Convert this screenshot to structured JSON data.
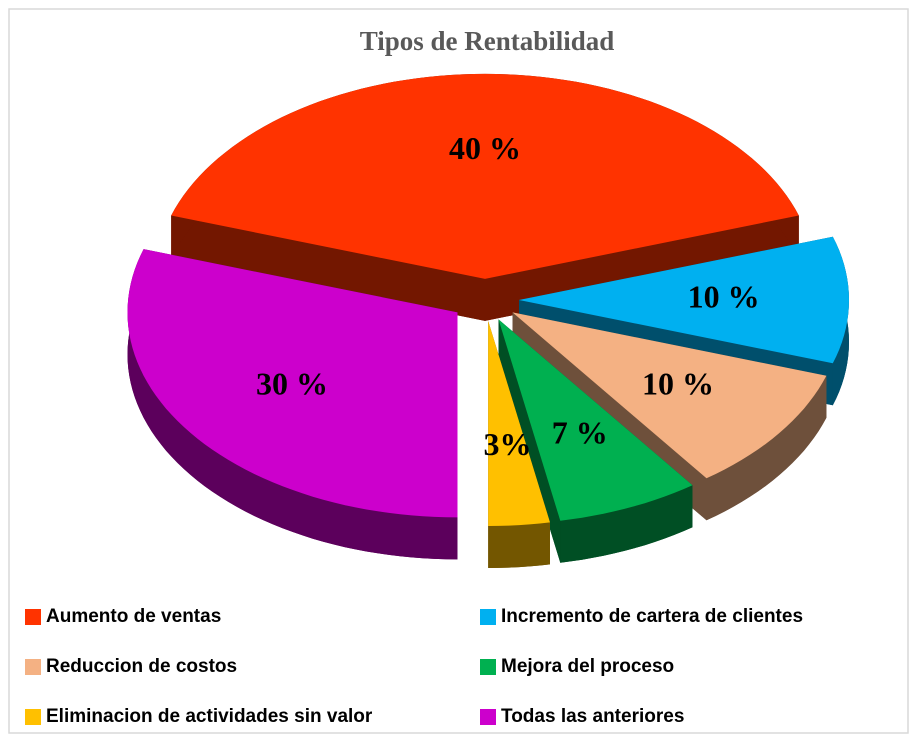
{
  "chart_data": {
    "type": "pie3d",
    "title": "Tipos de Rentabilidad",
    "categories": [
      "Aumento de ventas",
      "Incremento de cartera de clientes",
      "Reduccion de costos",
      "Mejora del proceso",
      "Eliminacion de actividades sin valor",
      "Todas las anteriores"
    ],
    "values": [
      40,
      10,
      10,
      7,
      3,
      30
    ],
    "value_labels": [
      "40 %",
      "10 %",
      "10 %",
      "7 %",
      "3%",
      "30 %"
    ],
    "colors": [
      "#ff3300",
      "#00b0f0",
      "#f4b183",
      "#00b050",
      "#ffc000",
      "#cc00cc"
    ],
    "legend": "bottom"
  }
}
